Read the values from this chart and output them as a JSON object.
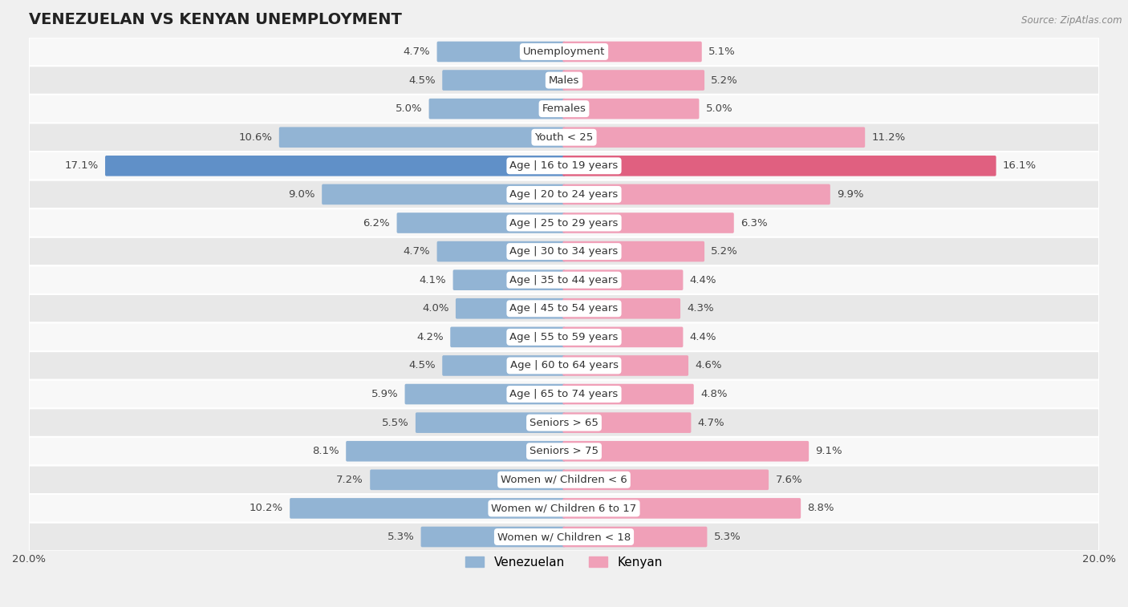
{
  "title": "VENEZUELAN VS KENYAN UNEMPLOYMENT",
  "source": "Source: ZipAtlas.com",
  "categories": [
    "Unemployment",
    "Males",
    "Females",
    "Youth < 25",
    "Age | 16 to 19 years",
    "Age | 20 to 24 years",
    "Age | 25 to 29 years",
    "Age | 30 to 34 years",
    "Age | 35 to 44 years",
    "Age | 45 to 54 years",
    "Age | 55 to 59 years",
    "Age | 60 to 64 years",
    "Age | 65 to 74 years",
    "Seniors > 65",
    "Seniors > 75",
    "Women w/ Children < 6",
    "Women w/ Children 6 to 17",
    "Women w/ Children < 18"
  ],
  "venezuelan": [
    4.7,
    4.5,
    5.0,
    10.6,
    17.1,
    9.0,
    6.2,
    4.7,
    4.1,
    4.0,
    4.2,
    4.5,
    5.9,
    5.5,
    8.1,
    7.2,
    10.2,
    5.3
  ],
  "kenyan": [
    5.1,
    5.2,
    5.0,
    11.2,
    16.1,
    9.9,
    6.3,
    5.2,
    4.4,
    4.3,
    4.4,
    4.6,
    4.8,
    4.7,
    9.1,
    7.6,
    8.8,
    5.3
  ],
  "venezuelan_color": "#92B4D4",
  "kenyan_color": "#F0A0B8",
  "highlight_venezuelan_color": "#6090C8",
  "highlight_kenyan_color": "#E06080",
  "background_color": "#f0f0f0",
  "row_color_light": "#f8f8f8",
  "row_color_dark": "#e8e8e8",
  "max_value": 20.0,
  "bar_height": 0.62,
  "label_fontsize": 9.5,
  "category_fontsize": 9.5,
  "title_fontsize": 14,
  "legend_fontsize": 11,
  "axis_label_fontsize": 9.5
}
